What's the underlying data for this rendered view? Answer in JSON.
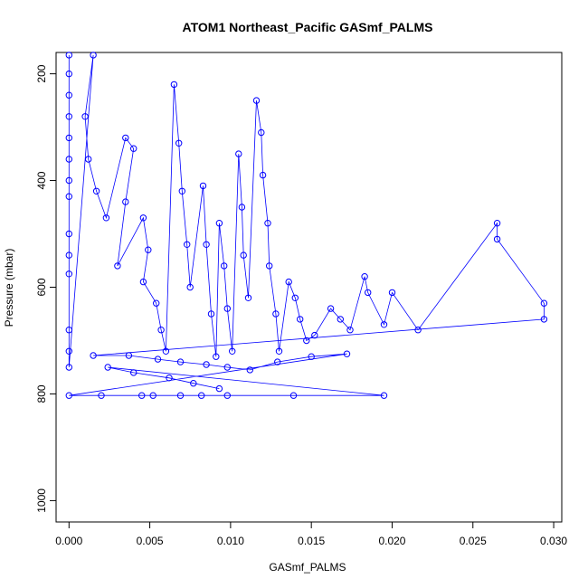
{
  "chart_data": {
    "type": "scatter",
    "title": "ATOM1 Northeast_Pacific GASmf_PALMS",
    "xlabel": "GASmf_PALMS",
    "ylabel": "Pressure (mbar)",
    "xlim": [
      -0.0008,
      0.0305
    ],
    "ylim": [
      1040,
      160
    ],
    "y_reversed": true,
    "xticks": [
      0.0,
      0.005,
      0.01,
      0.015,
      0.02,
      0.025,
      0.03
    ],
    "xtick_labels": [
      "0.000",
      "0.005",
      "0.010",
      "0.015",
      "0.020",
      "0.025",
      "0.030"
    ],
    "yticks": [
      200,
      400,
      600,
      800,
      1000
    ],
    "ytick_labels": [
      "200",
      "400",
      "600",
      "800",
      "1000"
    ],
    "grid": false,
    "marker_color": "#0000ff",
    "line_color": "#0000ff",
    "series": [
      {
        "name": "",
        "points": [
          [
            0.0,
            165
          ],
          [
            0.0,
            200
          ],
          [
            0.0,
            240
          ],
          [
            0.0,
            280
          ],
          [
            0.0,
            320
          ],
          [
            0.0,
            360
          ],
          [
            0.0,
            400
          ],
          [
            0.0,
            430
          ],
          [
            0.0,
            500
          ],
          [
            0.0,
            540
          ],
          [
            0.0,
            575
          ],
          [
            0.0,
            680
          ],
          [
            0.0,
            720
          ],
          [
            0.0,
            750
          ],
          [
            0.0015,
            165
          ],
          [
            0.001,
            280
          ],
          [
            0.0012,
            360
          ],
          [
            0.0017,
            420
          ],
          [
            0.0023,
            470
          ],
          [
            0.0035,
            320
          ],
          [
            0.004,
            340
          ],
          [
            0.0035,
            440
          ],
          [
            0.003,
            560
          ],
          [
            0.0046,
            470
          ],
          [
            0.0049,
            530
          ],
          [
            0.0046,
            590
          ],
          [
            0.0054,
            630
          ],
          [
            0.0057,
            680
          ],
          [
            0.006,
            720
          ],
          [
            0.0065,
            220
          ],
          [
            0.0068,
            330
          ],
          [
            0.007,
            420
          ],
          [
            0.0073,
            520
          ],
          [
            0.0075,
            600
          ],
          [
            0.0083,
            410
          ],
          [
            0.0085,
            520
          ],
          [
            0.0088,
            650
          ],
          [
            0.0091,
            730
          ],
          [
            0.0093,
            480
          ],
          [
            0.0096,
            560
          ],
          [
            0.0098,
            640
          ],
          [
            0.0101,
            720
          ],
          [
            0.0105,
            350
          ],
          [
            0.0107,
            450
          ],
          [
            0.0108,
            540
          ],
          [
            0.0111,
            620
          ],
          [
            0.0116,
            250
          ],
          [
            0.0119,
            310
          ],
          [
            0.012,
            390
          ],
          [
            0.0123,
            480
          ],
          [
            0.0124,
            560
          ],
          [
            0.0128,
            650
          ],
          [
            0.013,
            720
          ],
          [
            0.0136,
            590
          ],
          [
            0.014,
            620
          ],
          [
            0.0143,
            660
          ],
          [
            0.0147,
            700
          ],
          [
            0.0152,
            690
          ],
          [
            0.0162,
            640
          ],
          [
            0.0168,
            660
          ],
          [
            0.0174,
            680
          ],
          [
            0.0183,
            580
          ],
          [
            0.0185,
            610
          ],
          [
            0.0195,
            670
          ],
          [
            0.02,
            610
          ],
          [
            0.0216,
            680
          ],
          [
            0.0265,
            480
          ],
          [
            0.0265,
            510
          ],
          [
            0.0294,
            630
          ],
          [
            0.0294,
            660
          ],
          [
            0.0015,
            728
          ],
          [
            0.0037,
            728
          ],
          [
            0.0055,
            735
          ],
          [
            0.0069,
            740
          ],
          [
            0.0085,
            745
          ],
          [
            0.0098,
            750
          ],
          [
            0.0112,
            755
          ],
          [
            0.0129,
            740
          ],
          [
            0.015,
            730
          ],
          [
            0.0172,
            725
          ],
          [
            0.0,
            803
          ],
          [
            0.002,
            803
          ],
          [
            0.0045,
            803
          ],
          [
            0.0052,
            803
          ],
          [
            0.0069,
            803
          ],
          [
            0.0082,
            803
          ],
          [
            0.0098,
            803
          ],
          [
            0.0139,
            803
          ],
          [
            0.0195,
            803
          ],
          [
            0.0024,
            750
          ],
          [
            0.004,
            760
          ],
          [
            0.0062,
            770
          ],
          [
            0.0077,
            780
          ],
          [
            0.0093,
            790
          ]
        ]
      }
    ]
  }
}
